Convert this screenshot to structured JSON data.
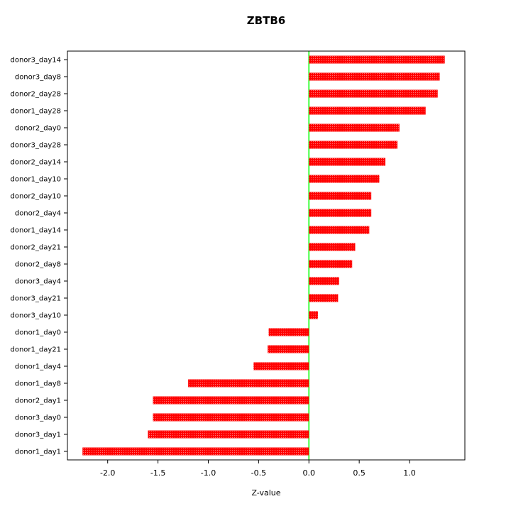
{
  "chart_data": {
    "type": "bar",
    "orientation": "horizontal",
    "title": "ZBTB6",
    "xlabel": "Z-value",
    "ylabel": "",
    "categories": [
      "donor3_day14",
      "donor3_day8",
      "donor2_day28",
      "donor1_day28",
      "donor2_day0",
      "donor3_day28",
      "donor2_day14",
      "donor1_day10",
      "donor2_day10",
      "donor2_day4",
      "donor1_day14",
      "donor2_day21",
      "donor2_day8",
      "donor3_day4",
      "donor3_day21",
      "donor3_day10",
      "donor1_day0",
      "donor1_day21",
      "donor1_day4",
      "donor1_day8",
      "donor2_day1",
      "donor3_day0",
      "donor3_day1",
      "donor1_day1"
    ],
    "values": [
      1.35,
      1.3,
      1.28,
      1.16,
      0.9,
      0.88,
      0.76,
      0.7,
      0.62,
      0.62,
      0.6,
      0.46,
      0.43,
      0.3,
      0.29,
      0.09,
      -0.4,
      -0.41,
      -0.55,
      -1.2,
      -1.55,
      -1.55,
      -1.6,
      -2.25
    ],
    "xlim": [
      -2.4,
      1.55
    ],
    "xticks": [
      -2.0,
      -1.5,
      -1.0,
      -0.5,
      0.0,
      0.5,
      1.0
    ],
    "bar_color": "#ff0000",
    "zero_line_color": "#00ff00",
    "axis_color": "#000000",
    "grid": false,
    "legend": false
  }
}
